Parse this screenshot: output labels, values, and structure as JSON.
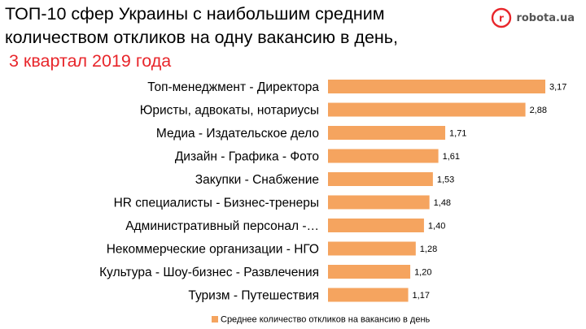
{
  "title": {
    "line1": "ТОП-10 сфер Украины с наибольшим средним",
    "line2": "количеством откликов на одну вакансию в день,",
    "subtitle": "3 квартал 2019 года"
  },
  "logo": {
    "text": "robota.ua",
    "mark": "r"
  },
  "colors": {
    "bar": "#f5a45f",
    "subtitle": "#e8262b",
    "logo": "#e8262b"
  },
  "chart_data": {
    "type": "bar",
    "orientation": "horizontal",
    "title": "ТОП-10 сфер Украины с наибольшим средним количеством откликов на одну вакансию в день, 3 квартал 2019 года",
    "categories": [
      "Топ-менеджмент - Директора",
      "Юристы, адвокаты, нотариусы",
      "Медиа - Издательское дело",
      "Дизайн - Графика - Фото",
      "Закупки - Снабжение",
      "HR специалисты - Бизнес-тренеры",
      "Административный персонал -…",
      "Некоммерческие организации - НГО",
      "Культура - Шоу-бизнес - Развлечения",
      "Туризм - Путешествия"
    ],
    "series": [
      {
        "name": "Среднее количество откликов на вакансию в день",
        "values": [
          3.17,
          2.88,
          1.71,
          1.61,
          1.53,
          1.48,
          1.4,
          1.28,
          1.2,
          1.17
        ],
        "labels": [
          "3,17",
          "2,88",
          "1,71",
          "1,61",
          "1,53",
          "1,48",
          "1,40",
          "1,28",
          "1,20",
          "1,17"
        ]
      }
    ],
    "xlim": [
      0,
      3.17
    ],
    "legend": "bottom",
    "grid": false
  }
}
